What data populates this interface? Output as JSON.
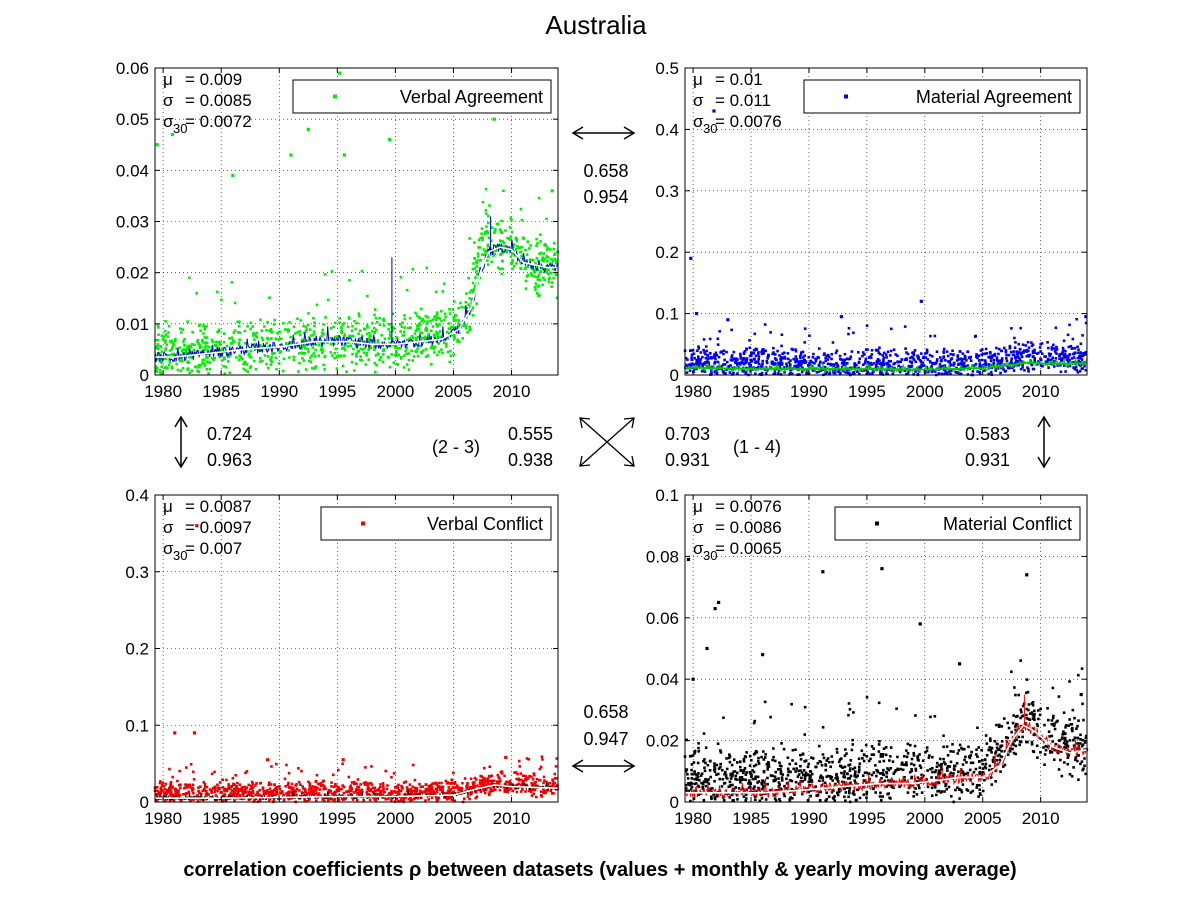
{
  "figure": {
    "title": "Australia",
    "footer": "correlation coefficients ρ between datasets (values + monthly & yearly moving average)"
  },
  "chart_data": [
    {
      "type": "scatter",
      "id": "verbal-agreement",
      "legend": "Verbal Agreement",
      "color": "#00ee00",
      "monthly_color": "#0000cc",
      "yearly_color": "#ffffff",
      "stats": {
        "mu_label": "μ",
        "mu": "= 0.009",
        "sigma_label": "σ",
        "sigma": "= 0.0085",
        "sigma30_label": "σ",
        "sigma30_sub": "30",
        "sigma30": "= 0.0072"
      },
      "xlim": [
        1979.3,
        2014
      ],
      "ylim": [
        0,
        0.06
      ],
      "xticks": [
        1980,
        1985,
        1990,
        1995,
        2000,
        2005,
        2010
      ],
      "yticks": [
        0,
        0.01,
        0.02,
        0.03,
        0.04,
        0.05,
        0.06
      ],
      "ytick_labels": [
        "0",
        "0.01",
        "0.02",
        "0.03",
        "0.04",
        "0.05",
        "0.06"
      ],
      "scatter_baseline": [
        [
          1979.3,
          0.0045
        ],
        [
          1985,
          0.0048
        ],
        [
          1990,
          0.0055
        ],
        [
          1995,
          0.0065
        ],
        [
          2000,
          0.0065
        ],
        [
          2005,
          0.0085
        ],
        [
          2006.5,
          0.014
        ],
        [
          2007.5,
          0.026
        ],
        [
          2008.5,
          0.026
        ],
        [
          2010,
          0.025
        ],
        [
          2012,
          0.021
        ],
        [
          2014,
          0.021
        ]
      ],
      "scatter_spread": 0.0045,
      "outliers": [
        [
          1979.5,
          0.045
        ],
        [
          1980.8,
          0.047
        ],
        [
          1986,
          0.039
        ],
        [
          1991,
          0.043
        ],
        [
          1992.5,
          0.048
        ],
        [
          1995.2,
          0.059
        ],
        [
          1995.6,
          0.043
        ],
        [
          1999.5,
          0.046
        ],
        [
          2008.5,
          0.05
        ],
        [
          2013.5,
          0.036
        ]
      ],
      "yearly_avg": [
        [
          1979.3,
          0.0035
        ],
        [
          1981,
          0.0035
        ],
        [
          1983,
          0.004
        ],
        [
          1985,
          0.0045
        ],
        [
          1987,
          0.005
        ],
        [
          1990,
          0.0055
        ],
        [
          1993,
          0.0065
        ],
        [
          1996,
          0.0065
        ],
        [
          1998,
          0.006
        ],
        [
          2000,
          0.006
        ],
        [
          2002,
          0.0065
        ],
        [
          2004,
          0.007
        ],
        [
          2005.5,
          0.009
        ],
        [
          2006.5,
          0.013
        ],
        [
          2007.3,
          0.02
        ],
        [
          2008,
          0.024
        ],
        [
          2009,
          0.025
        ],
        [
          2010,
          0.0245
        ],
        [
          2011,
          0.022
        ],
        [
          2012,
          0.0215
        ],
        [
          2013,
          0.021
        ],
        [
          2014,
          0.021
        ]
      ],
      "monthly_spikes": [
        [
          1999.7,
          0.023
        ],
        [
          2008.2,
          0.031
        ]
      ]
    },
    {
      "type": "scatter",
      "id": "material-agreement",
      "legend": "Material Agreement",
      "color": "#0000ee",
      "monthly_color": "#00cc00",
      "yearly_color": "#00cc00",
      "stats": {
        "mu_label": "μ",
        "mu": "= 0.01",
        "sigma_label": "σ",
        "sigma": "= 0.011",
        "sigma30_label": "σ",
        "sigma30_sub": "30",
        "sigma30": "= 0.0076"
      },
      "xlim": [
        1979.3,
        2014
      ],
      "ylim": [
        0,
        0.5
      ],
      "xticks": [
        1980,
        1985,
        1990,
        1995,
        2000,
        2005,
        2010
      ],
      "yticks": [
        0,
        0.1,
        0.2,
        0.3,
        0.4,
        0.5
      ],
      "ytick_labels": [
        "0",
        "0.1",
        "0.2",
        "0.3",
        "0.4",
        "0.5"
      ],
      "scatter_baseline": [
        [
          1979.3,
          0.02
        ],
        [
          1990,
          0.018
        ],
        [
          2000,
          0.017
        ],
        [
          2005,
          0.018
        ],
        [
          2007,
          0.025
        ],
        [
          2009,
          0.03
        ],
        [
          2012,
          0.028
        ],
        [
          2014,
          0.03
        ]
      ],
      "scatter_spread": 0.02,
      "outliers": [
        [
          1979.8,
          0.19
        ],
        [
          1980.3,
          0.1
        ],
        [
          1981.8,
          0.43
        ],
        [
          1983,
          0.09
        ],
        [
          1992.8,
          0.095
        ],
        [
          1999.7,
          0.12
        ],
        [
          2013.9,
          0.095
        ]
      ],
      "yearly_avg": [
        [
          1979.3,
          0.012
        ],
        [
          1985,
          0.01
        ],
        [
          1990,
          0.01
        ],
        [
          1995,
          0.01
        ],
        [
          2000,
          0.009
        ],
        [
          2005,
          0.011
        ],
        [
          2007,
          0.016
        ],
        [
          2009,
          0.02
        ],
        [
          2011,
          0.018
        ],
        [
          2014,
          0.019
        ]
      ],
      "monthly_spikes": []
    },
    {
      "type": "scatter",
      "id": "verbal-conflict",
      "legend": "Verbal Conflict",
      "color": "#ee0000",
      "monthly_color": "#000000",
      "yearly_color": "#ffffff",
      "stats": {
        "mu_label": "μ",
        "mu": "= 0.0087",
        "sigma_label": "σ",
        "sigma": "= 0.0097",
        "sigma30_label": "σ",
        "sigma30_sub": "30",
        "sigma30": "= 0.007"
      },
      "xlim": [
        1979.3,
        2014
      ],
      "ylim": [
        0,
        0.4
      ],
      "xticks": [
        1980,
        1985,
        1990,
        1995,
        2000,
        2005,
        2010
      ],
      "yticks": [
        0,
        0.1,
        0.2,
        0.3,
        0.4
      ],
      "ytick_labels": [
        "0",
        "0.1",
        "0.2",
        "0.3",
        "0.4"
      ],
      "scatter_baseline": [
        [
          1979.3,
          0.012
        ],
        [
          1990,
          0.012
        ],
        [
          2000,
          0.012
        ],
        [
          2005,
          0.013
        ],
        [
          2007,
          0.02
        ],
        [
          2009,
          0.025
        ],
        [
          2012,
          0.022
        ],
        [
          2014,
          0.022
        ]
      ],
      "scatter_spread": 0.012,
      "outliers": [
        [
          1981,
          0.09
        ],
        [
          1982.7,
          0.09
        ],
        [
          1982.9,
          0.36
        ],
        [
          1989,
          0.055
        ],
        [
          1995.5,
          0.055
        ],
        [
          2009.5,
          0.058
        ]
      ],
      "yearly_avg": [
        [
          1979.3,
          0.005
        ],
        [
          1985,
          0.005
        ],
        [
          1990,
          0.006
        ],
        [
          1995,
          0.007
        ],
        [
          2000,
          0.007
        ],
        [
          2005,
          0.009
        ],
        [
          2007,
          0.017
        ],
        [
          2008.5,
          0.022
        ],
        [
          2010,
          0.02
        ],
        [
          2014,
          0.018
        ]
      ],
      "monthly_spikes": []
    },
    {
      "type": "scatter",
      "id": "material-conflict",
      "legend": "Material Conflict",
      "color": "#000000",
      "monthly_color": "#ee0000",
      "yearly_color": "#ffffff",
      "stats": {
        "mu_label": "μ",
        "mu": "= 0.0076",
        "sigma_label": "σ",
        "sigma": "= 0.0086",
        "sigma30_label": "σ",
        "sigma30_sub": "30",
        "sigma30": "= 0.0065"
      },
      "xlim": [
        1979.3,
        2014
      ],
      "ylim": [
        0,
        0.1
      ],
      "xticks": [
        1980,
        1985,
        1990,
        1995,
        2000,
        2005,
        2010
      ],
      "yticks": [
        0,
        0.02,
        0.04,
        0.06,
        0.08,
        0.1
      ],
      "ytick_labels": [
        "0",
        "0.02",
        "0.04",
        "0.06",
        "0.08",
        "0.1"
      ],
      "scatter_baseline": [
        [
          1979.3,
          0.007
        ],
        [
          1985,
          0.007
        ],
        [
          1990,
          0.008
        ],
        [
          1995,
          0.009
        ],
        [
          2000,
          0.009
        ],
        [
          2005,
          0.011
        ],
        [
          2007,
          0.02
        ],
        [
          2008.5,
          0.028
        ],
        [
          2010,
          0.022
        ],
        [
          2012,
          0.018
        ],
        [
          2014,
          0.018
        ]
      ],
      "scatter_spread": 0.008,
      "outliers": [
        [
          1979.6,
          0.079
        ],
        [
          1980,
          0.04
        ],
        [
          1981.2,
          0.05
        ],
        [
          1981.9,
          0.063
        ],
        [
          1982.2,
          0.065
        ],
        [
          1986,
          0.048
        ],
        [
          1991.2,
          0.075
        ],
        [
          1996.3,
          0.076
        ],
        [
          1999.6,
          0.058
        ],
        [
          2003,
          0.045
        ],
        [
          2008.8,
          0.074
        ],
        [
          2013.5,
          0.035
        ]
      ],
      "yearly_avg": [
        [
          1979.3,
          0.003
        ],
        [
          1983,
          0.003
        ],
        [
          1986,
          0.003
        ],
        [
          1990,
          0.004
        ],
        [
          1993,
          0.005
        ],
        [
          1996,
          0.006
        ],
        [
          1999,
          0.006
        ],
        [
          2001,
          0.007
        ],
        [
          2003,
          0.008
        ],
        [
          2005,
          0.008
        ],
        [
          2006.5,
          0.012
        ],
        [
          2007.5,
          0.02
        ],
        [
          2008.5,
          0.025
        ],
        [
          2009.5,
          0.023
        ],
        [
          2011,
          0.018
        ],
        [
          2012.5,
          0.016
        ],
        [
          2014,
          0.017
        ]
      ],
      "monthly_spikes": [
        [
          1999.8,
          0.009
        ],
        [
          2001.5,
          0.012
        ],
        [
          2008.6,
          0.035
        ]
      ]
    }
  ],
  "correlations": {
    "top": {
      "a": "0.658",
      "b": "0.954"
    },
    "left": {
      "a": "0.724",
      "b": "0.963"
    },
    "right": {
      "a": "0.583",
      "b": "0.931"
    },
    "bottom": {
      "a": "0.658",
      "b": "0.947"
    },
    "diag_2_3": {
      "label": "(2 - 3)",
      "a": "0.555",
      "b": "0.938"
    },
    "diag_1_4": {
      "label": "(1 - 4)",
      "a": "0.703",
      "b": "0.931"
    }
  }
}
